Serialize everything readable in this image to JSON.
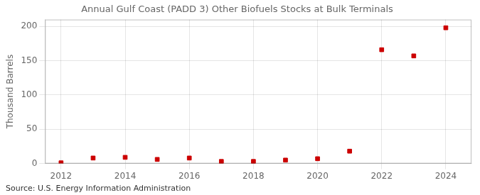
{
  "chart_data": {
    "type": "scatter",
    "title": "Annual Gulf Coast (PADD 3) Other Biofuels Stocks at Bulk Terminals",
    "ylabel": "Thousand Barrels",
    "annotation": "Source: U.S. Energy Information Administration",
    "x": [
      2012,
      2013,
      2014,
      2015,
      2016,
      2017,
      2018,
      2019,
      2020,
      2021,
      2022,
      2023,
      2024
    ],
    "values": [
      1,
      8,
      9,
      6,
      8,
      3,
      3,
      5,
      7,
      18,
      166,
      157,
      198
    ],
    "color": "#cc0000",
    "marker": "square",
    "xlim": [
      2011.5,
      2024.8
    ],
    "ylim": [
      0,
      210
    ],
    "xticks": [
      2012,
      2014,
      2016,
      2018,
      2020,
      2022,
      2024
    ],
    "yticks": [
      0,
      50,
      100,
      150,
      200
    ],
    "grid": true
  }
}
